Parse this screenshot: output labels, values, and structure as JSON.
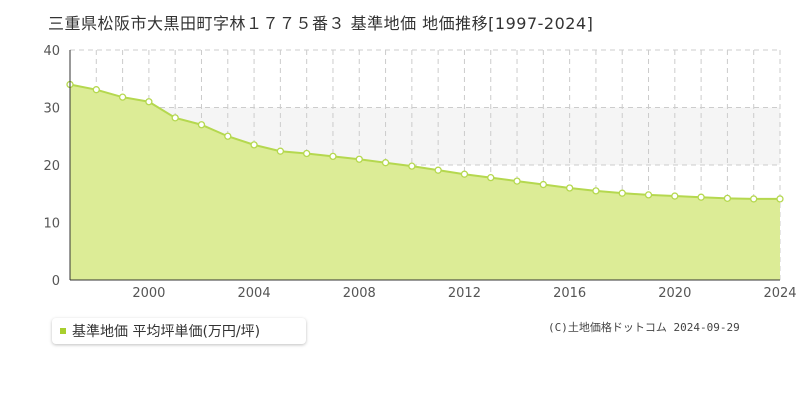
{
  "title": "三重県松阪市大黒田町字林１７７５番３ 基準地価 地価推移[1997-2024]",
  "legend_label": "基準地価 平均坪単価(万円/坪)",
  "credit": "(C)土地価格ドットコム 2024-09-29",
  "colors": {
    "fill": "#dcec96",
    "line": "#b5d84f",
    "band": "#f5f5f5",
    "grid": "#cccccc",
    "legend_swatch": "#a8cf2e"
  },
  "chart_data": {
    "type": "area",
    "title": "三重県松阪市大黒田町字林１７７５番３ 基準地価 地価推移[1997-2024]",
    "xlabel": "",
    "ylabel": "",
    "xlim": [
      1997,
      2024
    ],
    "ylim": [
      0,
      40
    ],
    "x_ticks": [
      2000,
      2004,
      2008,
      2012,
      2016,
      2020,
      2024
    ],
    "y_ticks": [
      0,
      10,
      20,
      30,
      40
    ],
    "grid": true,
    "legend_position": "bottom-left",
    "series": [
      {
        "name": "基準地価 平均坪単価(万円/坪)",
        "x": [
          1997,
          1998,
          1999,
          2000,
          2001,
          2002,
          2003,
          2004,
          2005,
          2006,
          2007,
          2008,
          2009,
          2010,
          2011,
          2012,
          2013,
          2014,
          2015,
          2016,
          2017,
          2018,
          2019,
          2020,
          2021,
          2022,
          2023,
          2024
        ],
        "values": [
          34,
          33.1,
          31.8,
          31.0,
          28.2,
          27.0,
          25.0,
          23.5,
          22.4,
          22.0,
          21.5,
          21.0,
          20.4,
          19.8,
          19.1,
          18.4,
          17.8,
          17.2,
          16.6,
          16.0,
          15.5,
          15.1,
          14.8,
          14.6,
          14.4,
          14.2,
          14.1,
          14.1
        ]
      }
    ]
  }
}
